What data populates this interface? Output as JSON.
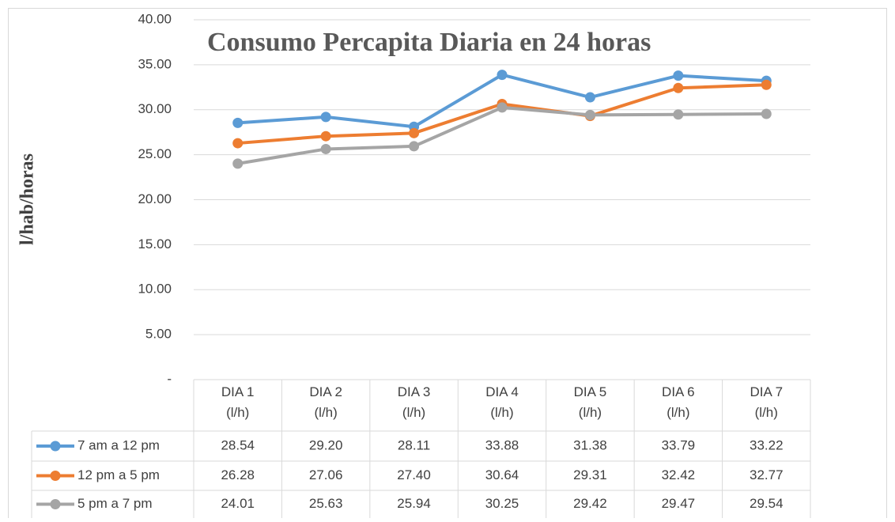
{
  "chart_data": {
    "type": "line",
    "title": "Consumo Percapita Diaria en 24 horas",
    "y_label": "l/hab/horas",
    "categories": [
      "DIA 1 (l/h)",
      "DIA 2 (l/h)",
      "DIA 3 (l/h)",
      "DIA 4 (l/h)",
      "DIA 5 (l/h)",
      "DIA 6 (l/h)",
      "DIA 7 (l/h)"
    ],
    "series": [
      {
        "name": "7 am a 12 pm",
        "color": "#5b9bd5",
        "values": [
          28.54,
          29.2,
          28.11,
          33.88,
          31.38,
          33.79,
          33.22
        ],
        "value_labels": [
          "28.54",
          "29.20",
          "28.11",
          "33.88",
          "31.38",
          "33.79",
          "33.22"
        ]
      },
      {
        "name": "12 pm a 5 pm",
        "color": "#ed7d31",
        "values": [
          26.28,
          27.06,
          27.4,
          30.64,
          29.31,
          32.42,
          32.77
        ],
        "value_labels": [
          "26.28",
          "27.06",
          "27.40",
          "30.64",
          "29.31",
          "32.42",
          "32.77"
        ]
      },
      {
        "name": "5 pm a 7 pm",
        "color": "#a5a5a5",
        "values": [
          24.01,
          25.63,
          25.94,
          30.25,
          29.42,
          29.47,
          29.54
        ],
        "value_labels": [
          "24.01",
          "25.63",
          "25.94",
          "30.25",
          "29.42",
          "29.47",
          "29.54"
        ]
      }
    ],
    "ylim": [
      0,
      40
    ],
    "yticks": [
      {
        "value": 0,
        "label": "-"
      },
      {
        "value": 5,
        "label": "5.00"
      },
      {
        "value": 10,
        "label": "10.00"
      },
      {
        "value": 15,
        "label": "15.00"
      },
      {
        "value": 20,
        "label": "20.00"
      },
      {
        "value": 25,
        "label": "25.00"
      },
      {
        "value": 30,
        "label": "30.00"
      },
      {
        "value": 35,
        "label": "35.00"
      },
      {
        "value": 40,
        "label": "40.00"
      }
    ],
    "grid": true
  }
}
